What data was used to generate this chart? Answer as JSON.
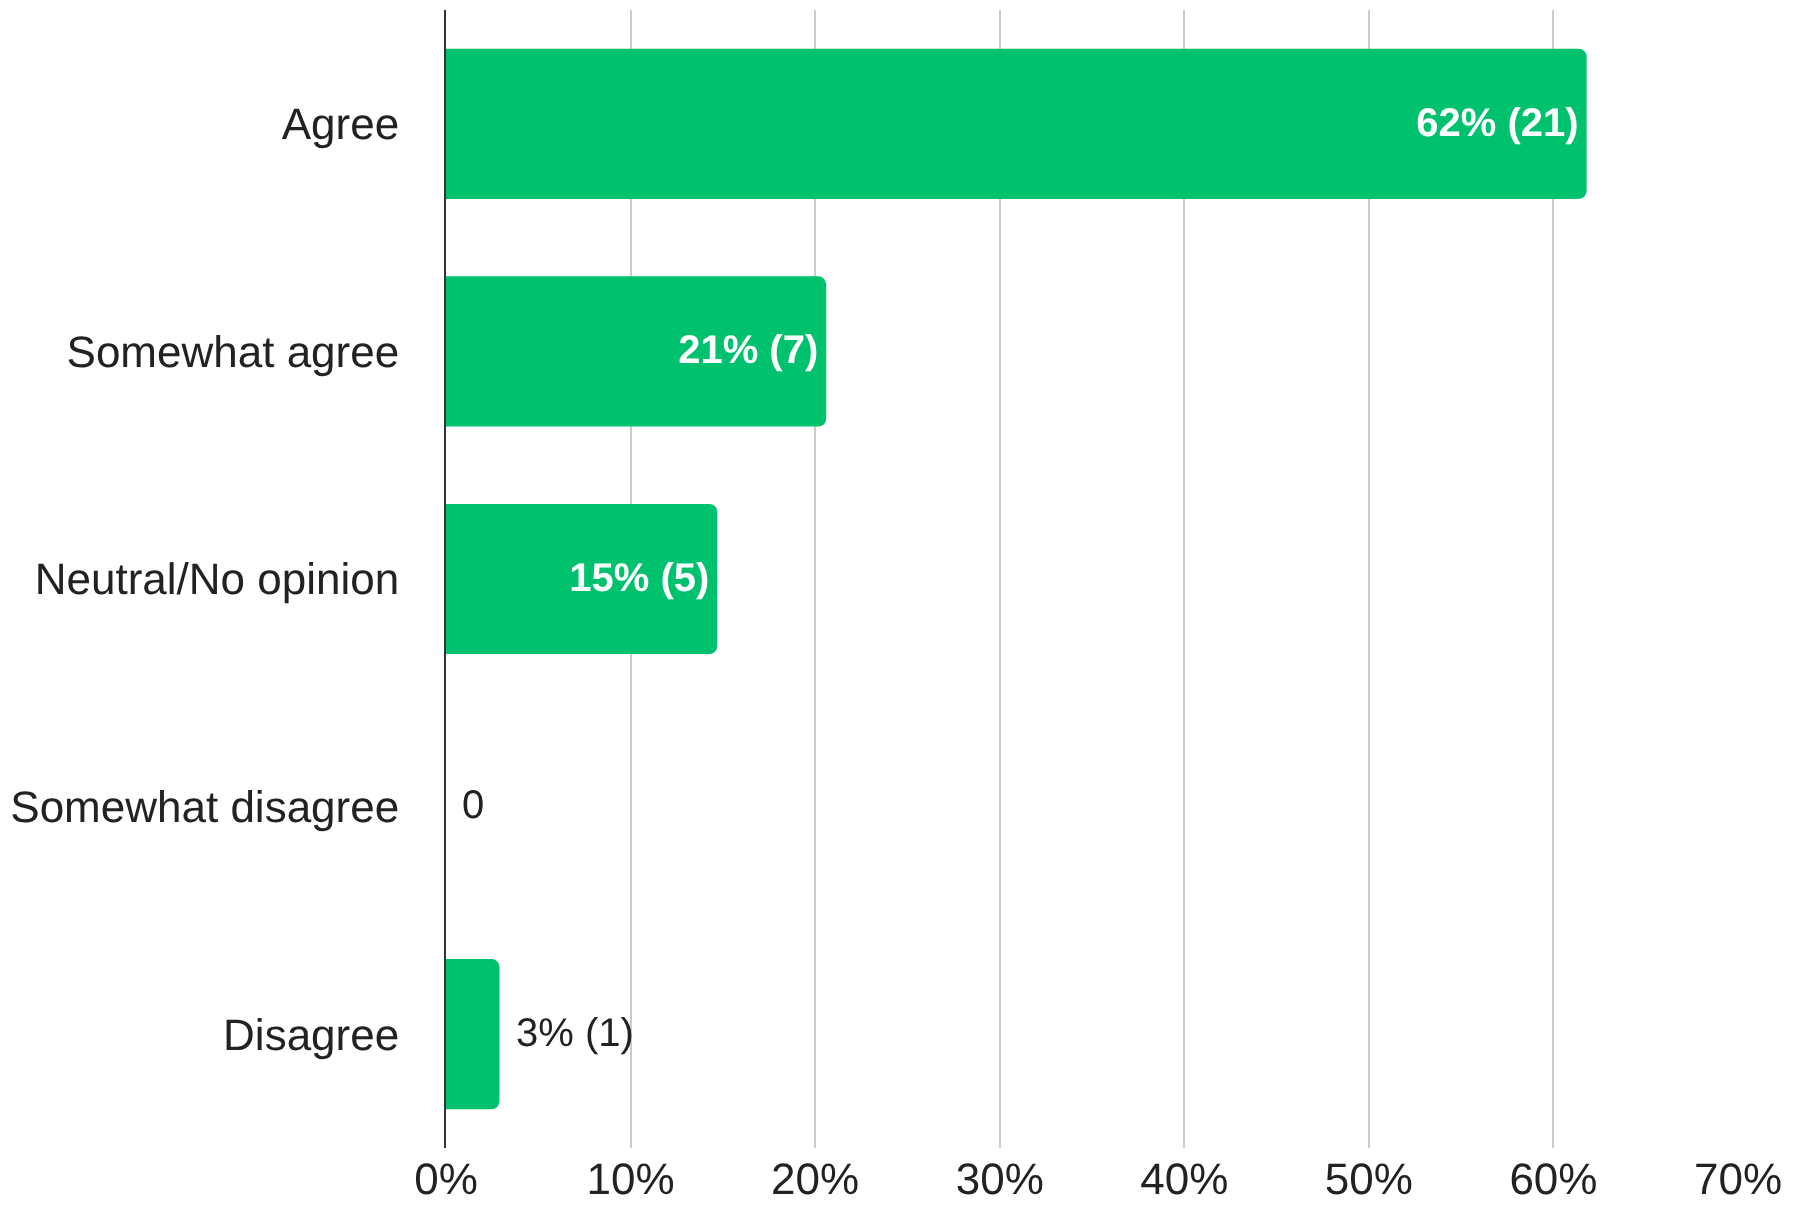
{
  "chart_data": {
    "type": "bar",
    "orientation": "horizontal",
    "categories": [
      "Agree",
      "Somewhat agree",
      "Neutral/No opinion",
      "Somewhat disagree",
      "Disagree"
    ],
    "values": [
      61.8,
      20.6,
      14.7,
      0,
      2.9
    ],
    "value_labels": [
      "62% (21)",
      "21% (7)",
      "15% (5)",
      "0",
      "3% (1)"
    ],
    "color": "#00c16e",
    "xlim": [
      0,
      70
    ],
    "xticks": [
      {
        "value": 0,
        "label": "0%"
      },
      {
        "value": 10,
        "label": "10%"
      },
      {
        "value": 20,
        "label": "20%"
      },
      {
        "value": 30,
        "label": "30%"
      },
      {
        "value": 40,
        "label": "40%"
      },
      {
        "value": 50,
        "label": "50%"
      },
      {
        "value": 60,
        "label": "60%"
      },
      {
        "value": 70,
        "label": "70%"
      }
    ],
    "grid": "x"
  }
}
